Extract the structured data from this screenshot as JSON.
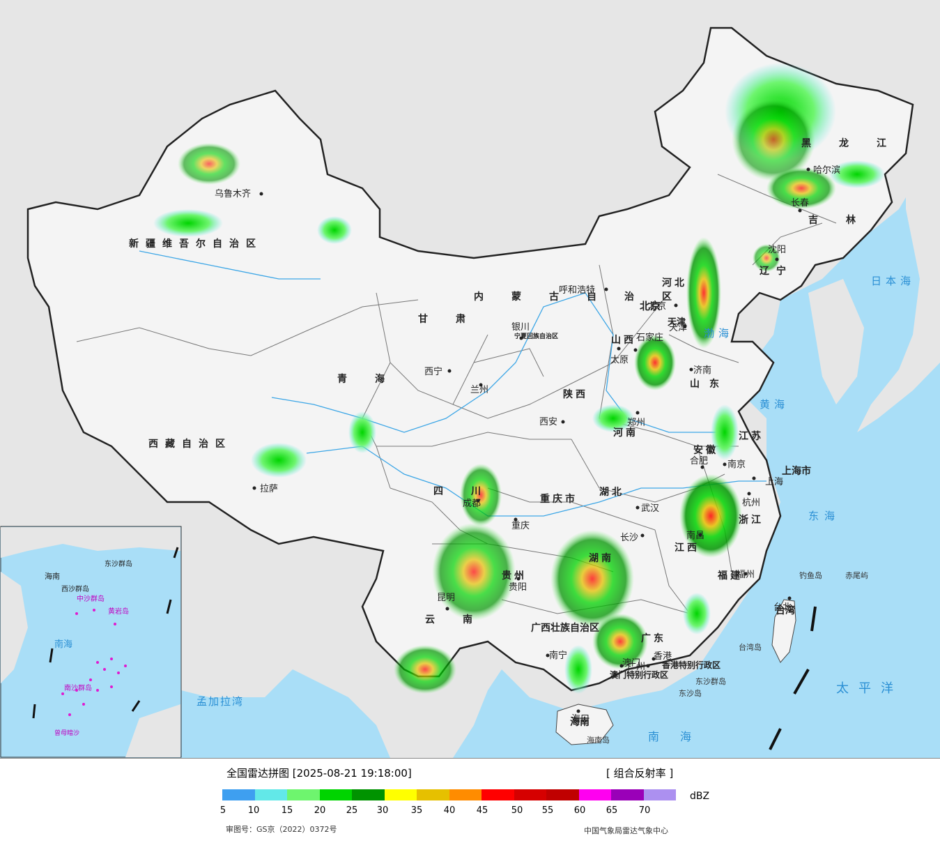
{
  "legend": {
    "title": "全国雷达拼图 [2025-08-21 19:18:00]",
    "product": "[ 组合反射率 ]",
    "unit": "dBZ",
    "ticks": [
      "5",
      "10",
      "15",
      "20",
      "25",
      "30",
      "35",
      "40",
      "45",
      "50",
      "55",
      "60",
      "65",
      "70"
    ],
    "colors": [
      "#3e9ff0",
      "#62e8e8",
      "#6ef56e",
      "#00d400",
      "#009300",
      "#ffff00",
      "#e6c000",
      "#ff8c00",
      "#ff0000",
      "#d60000",
      "#c00000",
      "#ff00f0",
      "#9a00b8",
      "#ac90f0"
    ],
    "approval": "审图号：GS京（2022）0372号",
    "producer": "中国气象局雷达气象中心"
  },
  "map": {
    "colors": {
      "sea": "#a9def7",
      "land_outside": "#e6e6e6",
      "china_land": "#f4f4f4",
      "border": "#222222",
      "province": "#777777",
      "river": "#3ca6e6"
    },
    "regions": [
      {
        "name": "新疆维吾尔自治区"
      },
      {
        "name": "西藏自治区"
      },
      {
        "name": "青海"
      },
      {
        "name": "甘肃"
      },
      {
        "name": "内蒙古自治区"
      },
      {
        "name": "四川"
      },
      {
        "name": "云南"
      },
      {
        "name": "黑龙江"
      },
      {
        "name": "吉林"
      },
      {
        "name": "辽宁"
      },
      {
        "name": "河北"
      },
      {
        "name": "山西"
      },
      {
        "name": "陕西"
      },
      {
        "name": "河南"
      },
      {
        "name": "山东"
      },
      {
        "name": "江苏"
      },
      {
        "name": "安徽"
      },
      {
        "name": "湖北"
      },
      {
        "name": "湖南"
      },
      {
        "name": "江西"
      },
      {
        "name": "浙江"
      },
      {
        "name": "福建"
      },
      {
        "name": "广东"
      },
      {
        "name": "广西壮族自治区"
      },
      {
        "name": "贵州"
      },
      {
        "name": "重庆市"
      },
      {
        "name": "宁夏回族自治区"
      },
      {
        "name": "海南"
      },
      {
        "name": "台湾"
      },
      {
        "name": "上海市"
      },
      {
        "name": "天津"
      },
      {
        "name": "北京"
      },
      {
        "name": "香港特别行政区"
      },
      {
        "name": "澳门特别行政区"
      }
    ],
    "cities": [
      {
        "name": "乌鲁木齐"
      },
      {
        "name": "拉萨"
      },
      {
        "name": "西宁"
      },
      {
        "name": "兰州"
      },
      {
        "name": "银川"
      },
      {
        "name": "呼和浩特"
      },
      {
        "name": "哈尔滨"
      },
      {
        "name": "长春"
      },
      {
        "name": "沈阳"
      },
      {
        "name": "北京"
      },
      {
        "name": "天津"
      },
      {
        "name": "石家庄"
      },
      {
        "name": "太原"
      },
      {
        "name": "济南"
      },
      {
        "name": "郑州"
      },
      {
        "name": "西安"
      },
      {
        "name": "合肥"
      },
      {
        "name": "南京"
      },
      {
        "name": "上海"
      },
      {
        "name": "杭州"
      },
      {
        "name": "武汉"
      },
      {
        "name": "长沙"
      },
      {
        "name": "南昌"
      },
      {
        "name": "福州"
      },
      {
        "name": "台北"
      },
      {
        "name": "成都"
      },
      {
        "name": "重庆"
      },
      {
        "name": "贵阳"
      },
      {
        "name": "昆明"
      },
      {
        "name": "南宁"
      },
      {
        "name": "广州"
      },
      {
        "name": "香港"
      },
      {
        "name": "澳门"
      },
      {
        "name": "海口"
      }
    ],
    "seas": [
      {
        "name": "日本海"
      },
      {
        "name": "渤海"
      },
      {
        "name": "黄海"
      },
      {
        "name": "东海"
      },
      {
        "name": "太平洋"
      },
      {
        "name": "南海"
      },
      {
        "name": "孟加拉湾"
      }
    ],
    "islands": [
      {
        "name": "钓鱼岛"
      },
      {
        "name": "赤尾屿"
      },
      {
        "name": "台湾岛"
      },
      {
        "name": "东沙群岛"
      },
      {
        "name": "东沙岛"
      },
      {
        "name": "海南岛"
      }
    ],
    "inset": [
      {
        "name": "海南"
      },
      {
        "name": "东沙群岛"
      },
      {
        "name": "西沙群岛"
      },
      {
        "name": "中沙群岛"
      },
      {
        "name": "南海"
      },
      {
        "name": "南沙群岛"
      },
      {
        "name": "黄岩岛"
      },
      {
        "name": "曾母暗沙"
      }
    ]
  }
}
